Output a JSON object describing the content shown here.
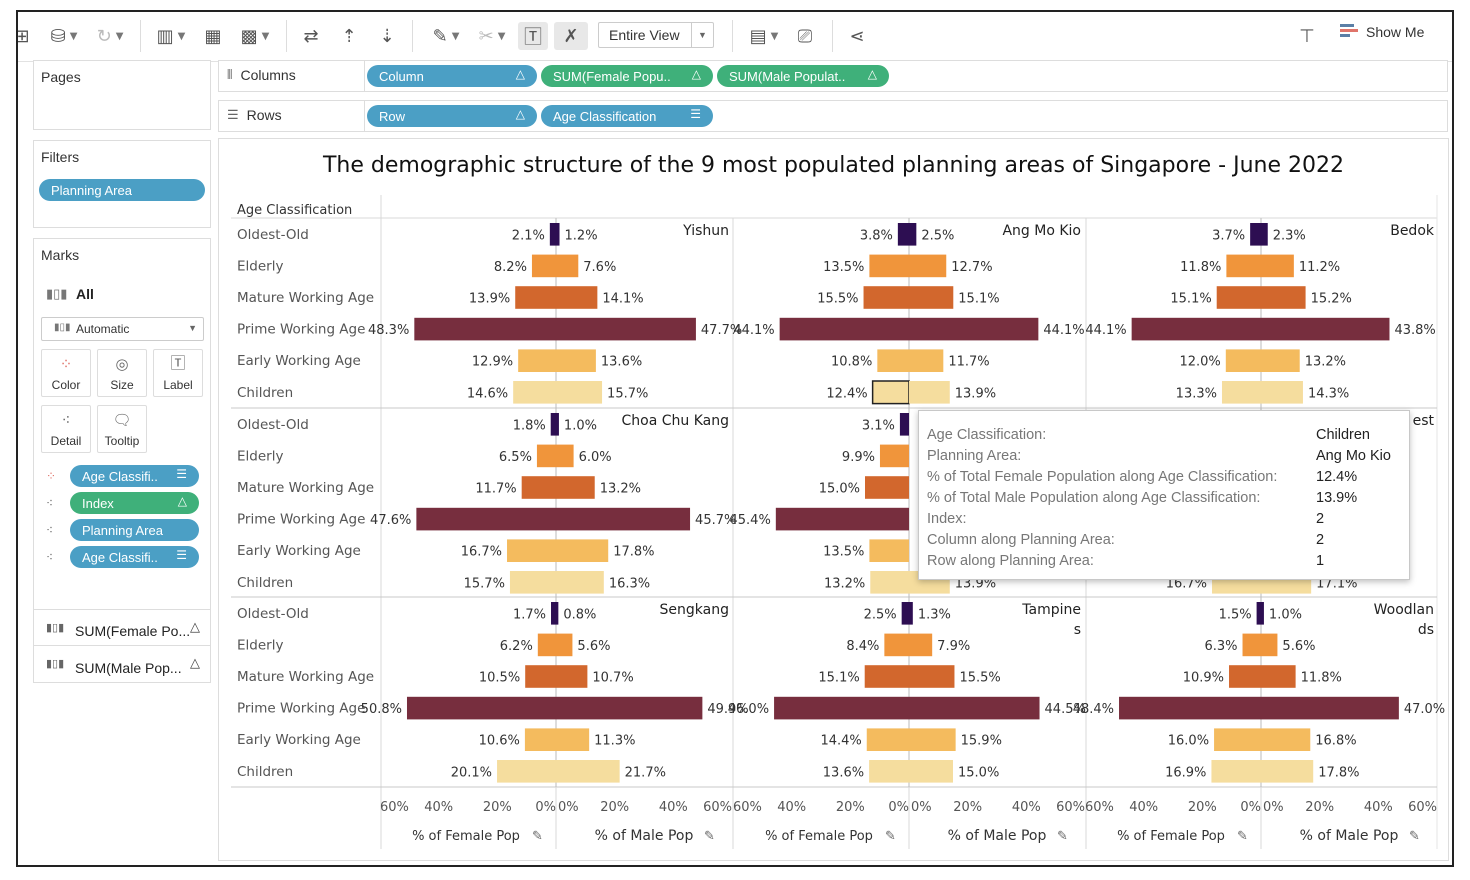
{
  "toolbar": {
    "view_select": "Entire View",
    "show_me": "Show Me",
    "show_me_color": "#5b7fa6"
  },
  "pages_panel": {
    "title": "Pages"
  },
  "filters_panel": {
    "title": "Filters",
    "pills": [
      "Planning Area"
    ]
  },
  "marks_panel": {
    "title": "Marks",
    "all_label": "All",
    "mark_type": "Automatic",
    "buttons": [
      "Color",
      "Size",
      "Label",
      "Detail",
      "Tooltip"
    ],
    "fields": [
      {
        "label": "Age Classifi..",
        "type": "blue",
        "icon": "sort-icon"
      },
      {
        "label": "Index",
        "type": "green",
        "icon": "delta-icon"
      },
      {
        "label": "Planning Area",
        "type": "blue",
        "icon": ""
      },
      {
        "label": "Age Classifi..",
        "type": "blue",
        "icon": "sort-icon"
      }
    ],
    "measures": [
      "SUM(Female Po...",
      "SUM(Male Pop..."
    ]
  },
  "shelves": {
    "columns_label": "Columns",
    "rows_label": "Rows",
    "columns": [
      {
        "label": "Column",
        "type": "blue",
        "icon": "delta-icon"
      },
      {
        "label": "SUM(Female Popu..",
        "type": "green",
        "icon": "delta-icon"
      },
      {
        "label": "SUM(Male Populat..",
        "type": "green",
        "icon": "delta-icon"
      }
    ],
    "rows": [
      {
        "label": "Row",
        "type": "blue",
        "icon": "delta-icon"
      },
      {
        "label": "Age Classification",
        "type": "blue",
        "icon": "sort-icon"
      }
    ]
  },
  "chart_data": {
    "type": "bar",
    "title": "The demographic structure of the 9 most populated planning areas of Singapore - June 2022",
    "row_header": "Age Classification",
    "categories": [
      "Oldest-Old",
      "Elderly",
      "Mature Working Age",
      "Prime Working Age",
      "Early Working Age",
      "Children"
    ],
    "category_colors": [
      "#2d0e52",
      "#f0953b",
      "#d2672d",
      "#772e3e",
      "#f4bb5e",
      "#f5dd9e"
    ],
    "xlim": [
      0,
      60
    ],
    "ticks": [
      "60%",
      "40%",
      "20%",
      "0%"
    ],
    "ticks_right": [
      "0%",
      "20%",
      "40%",
      "60%"
    ],
    "xlabel_female": "% of Female Pop",
    "xlabel_male": "% of Male Pop",
    "areas": [
      {
        "name": "Yishun",
        "female": [
          2.1,
          8.2,
          13.9,
          48.3,
          12.9,
          14.6
        ],
        "male": [
          1.2,
          7.6,
          14.1,
          47.7,
          13.6,
          15.7
        ],
        "female_labels": [
          "2.1%",
          "8.2%",
          "13.9%",
          "48.3%",
          "12.9%",
          "14.6%"
        ],
        "male_labels": [
          "1.2%",
          "7.6%",
          "14.1%",
          "47.7%",
          "13.6%",
          "15.7%"
        ]
      },
      {
        "name": "Ang Mo Kio",
        "female": [
          3.8,
          13.5,
          15.5,
          44.1,
          10.8,
          12.4
        ],
        "male": [
          2.5,
          12.7,
          15.1,
          44.1,
          11.7,
          13.9
        ],
        "female_labels": [
          "3.8%",
          "13.5%",
          "15.5%",
          "44.1%",
          "10.8%",
          "12.4%"
        ],
        "male_labels": [
          "2.5%",
          "12.7%",
          "15.1%",
          "44.1%",
          "11.7%",
          "13.9%"
        ]
      },
      {
        "name": "Bedok",
        "female": [
          3.7,
          11.8,
          15.1,
          44.1,
          12.0,
          13.3
        ],
        "male": [
          2.3,
          11.2,
          15.2,
          43.8,
          13.2,
          14.3
        ],
        "female_labels": [
          "3.7%",
          "11.8%",
          "15.1%",
          "44.1%",
          "12.0%",
          "13.3%"
        ],
        "male_labels": [
          "2.3%",
          "11.2%",
          "15.2%",
          "43.8%",
          "13.2%",
          "14.3%"
        ]
      },
      {
        "name": "Choa Chu Kang",
        "female": [
          1.8,
          6.5,
          11.7,
          47.6,
          16.7,
          15.7
        ],
        "male": [
          1.0,
          6.0,
          13.2,
          45.7,
          17.8,
          16.3
        ],
        "female_labels": [
          "1.8%",
          "6.5%",
          "11.7%",
          "47.6%",
          "16.7%",
          "15.7%"
        ],
        "male_labels": [
          "1.0%",
          "6.0%",
          "13.2%",
          "45.7%",
          "17.8%",
          "16.3%"
        ]
      },
      {
        "name": "",
        "female": [
          3.1,
          9.9,
          15.0,
          45.4,
          13.5,
          13.2
        ],
        "male": [
          null,
          null,
          null,
          null,
          null,
          13.9
        ],
        "female_labels": [
          "3.1%",
          "9.9%",
          "15.0%",
          "45.4%",
          "13.5%",
          "13.2%"
        ],
        "male_labels": [
          "",
          "",
          "",
          "",
          "",
          "13.9%"
        ]
      },
      {
        "name": "est",
        "female": [
          null,
          null,
          null,
          null,
          null,
          16.7
        ],
        "male": [
          null,
          null,
          null,
          null,
          null,
          17.1
        ],
        "female_labels": [
          "",
          "",
          "",
          "",
          "",
          "16.7%"
        ],
        "male_labels": [
          "",
          "",
          "",
          "0%",
          "",
          "17.1%"
        ]
      },
      {
        "name": "Sengkang",
        "female": [
          1.7,
          6.2,
          10.5,
          50.8,
          10.6,
          20.1
        ],
        "male": [
          0.8,
          5.6,
          10.7,
          49.9,
          11.3,
          21.7
        ],
        "female_labels": [
          "1.7%",
          "6.2%",
          "10.5%",
          "50.8%",
          "10.6%",
          "20.1%"
        ],
        "male_labels": [
          "0.8%",
          "5.6%",
          "10.7%",
          "49.9%",
          "11.3%",
          "21.7%"
        ]
      },
      {
        "name": "Tampine|s",
        "female": [
          2.5,
          8.4,
          15.1,
          46.0,
          14.4,
          13.6
        ],
        "male": [
          1.3,
          7.9,
          15.5,
          44.5,
          15.9,
          15.0
        ],
        "female_labels": [
          "2.5%",
          "8.4%",
          "15.1%",
          "46.0%",
          "14.4%",
          "13.6%"
        ],
        "male_labels": [
          "1.3%",
          "7.9%",
          "15.5%",
          "44.5%",
          "15.9%",
          "15.0%"
        ]
      },
      {
        "name": "Woodlan|ds",
        "female": [
          1.5,
          6.3,
          10.9,
          48.4,
          16.0,
          16.9
        ],
        "male": [
          1.0,
          5.6,
          11.8,
          47.0,
          16.8,
          17.8
        ],
        "female_labels": [
          "1.5%",
          "6.3%",
          "10.9%",
          "48.4%",
          "16.0%",
          "16.9%"
        ],
        "male_labels": [
          "1.0%",
          "5.6%",
          "11.8%",
          "47.0%",
          "16.8%",
          "17.8%"
        ]
      }
    ],
    "highlight": {
      "area": 1,
      "category": 5
    }
  },
  "tooltip": {
    "rows": [
      {
        "key": "Age Classification:",
        "value": "Children"
      },
      {
        "key": "Planning Area:",
        "value": "Ang Mo Kio"
      },
      {
        "key": "% of Total Female Population along Age Classification:",
        "value": "12.4%"
      },
      {
        "key": "% of Total Male Population along Age Classification:",
        "value": "13.9%"
      },
      {
        "key": "Index:",
        "value": "2"
      },
      {
        "key": "Column along Planning Area:",
        "value": "2"
      },
      {
        "key": "Row along Planning Area:",
        "value": "1"
      }
    ]
  }
}
